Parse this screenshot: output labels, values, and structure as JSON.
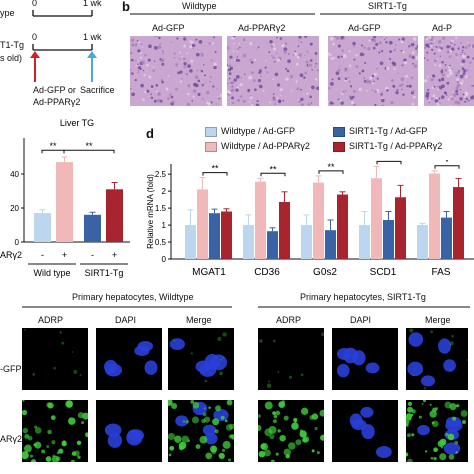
{
  "panel_a": {
    "timeline_top": {
      "start": "0",
      "end": "1 wk",
      "label": "ype"
    },
    "timeline_bottom": {
      "start": "0",
      "end": "1 wk",
      "label1": "T1-Tg",
      "label2": "s old)"
    },
    "inject_label": [
      "Ad-GFP or",
      "Ad-PPARγ2"
    ],
    "sacrifice_label": "Sacrifice",
    "colors": {
      "red_arrow": "#d0202a",
      "blue_arrow": "#4aa8e0"
    }
  },
  "panel_b": {
    "letter": "b",
    "groups": [
      {
        "name": "Wildtype",
        "cols": [
          "Ad-GFP",
          "Ad-PPARγ2"
        ]
      },
      {
        "name": "SIRT1-Tg",
        "cols": [
          "Ad-GFP",
          "Ad-P"
        ]
      }
    ],
    "tile_color": "#c9a7d1"
  },
  "panel_c": {
    "chart_data": {
      "type": "bar",
      "title": "Liver TG",
      "categories": [
        "-",
        "+",
        "-",
        "+"
      ],
      "values": [
        17,
        47,
        16,
        31
      ],
      "errors": [
        2,
        3,
        1.5,
        4
      ],
      "colors": [
        "#bcd6ef",
        "#f0b8b8",
        "#3a63a6",
        "#a8242f"
      ],
      "ylim": [
        0,
        60
      ],
      "yticks": [
        0,
        20,
        40
      ],
      "treatment_label": "ARγ2",
      "group_labels": [
        "Wild type",
        "SIRT1-Tg"
      ],
      "significance": [
        "**",
        "**"
      ]
    }
  },
  "panel_d": {
    "letter": "d",
    "legend": [
      {
        "label": "Wildtype / Ad-GFP",
        "color": "#bcd6ef"
      },
      {
        "label": "Wildtype / Ad-PPARγ2",
        "color": "#f0b8b8"
      },
      {
        "label": "SIRT1-Tg / Ad-GFP",
        "color": "#3a63a6"
      },
      {
        "label": "SIRT1-Tg / Ad-PPARγ2",
        "color": "#a8242f"
      }
    ],
    "chart_data": {
      "type": "bar",
      "ylabel": "Relative mRNA (fold)",
      "categories": [
        "MGAT1",
        "CD36",
        "G0s2",
        "SCD1",
        "FAS"
      ],
      "series": [
        {
          "values": [
            1.0,
            1.0,
            1.0,
            1.0,
            1.0
          ],
          "errors": [
            0.45,
            0.3,
            0.3,
            0.4,
            0.05
          ]
        },
        {
          "values": [
            2.05,
            2.28,
            2.25,
            2.38,
            2.52
          ],
          "errors": [
            0.35,
            0.1,
            0.2,
            0.35,
            0.08
          ]
        },
        {
          "values": [
            1.35,
            0.82,
            0.85,
            1.15,
            1.22
          ],
          "errors": [
            0.12,
            0.1,
            0.3,
            0.25,
            0.18
          ]
        },
        {
          "values": [
            1.4,
            1.68,
            1.9,
            1.82,
            2.12
          ],
          "errors": [
            0.08,
            0.3,
            0.08,
            0.35,
            0.25
          ]
        }
      ],
      "ylim": [
        0,
        2.8
      ],
      "yticks": [
        0,
        0.5,
        1,
        1.5,
        2,
        2.5
      ],
      "significance": [
        "**",
        "**",
        "**",
        "*",
        "*"
      ]
    }
  },
  "panel_e": {
    "group_titles": [
      "Primary hepatocytes, Wildtype",
      "Primary hepatocytes, SIRT1-Tg"
    ],
    "channel_labels": [
      "ADRP",
      "DAPI",
      "Merge",
      "ADRP",
      "DAPI",
      "Merge"
    ],
    "row_labels": [
      "-GFP",
      "ARγ2"
    ]
  }
}
